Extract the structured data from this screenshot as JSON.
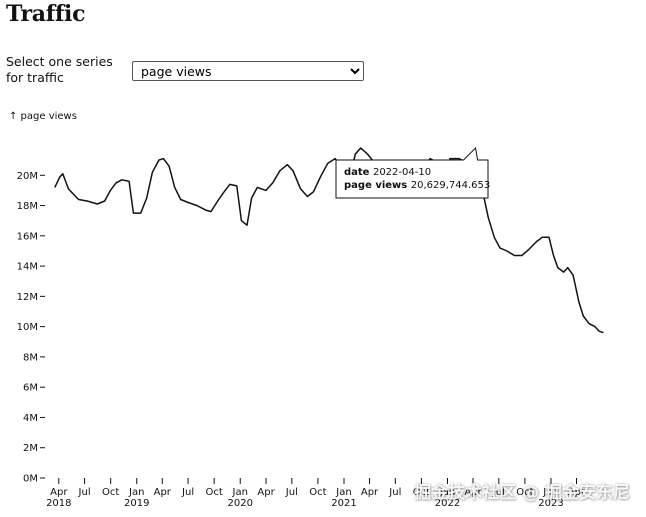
{
  "page": {
    "title": "Traffic"
  },
  "controls": {
    "series_label": "Select one series for traffic",
    "series_options": [
      "page views"
    ],
    "selected": "page views"
  },
  "tooltip": {
    "date_label": "date",
    "date_value": "2022-04-10",
    "value_label": "page views",
    "value_value": "20,629,744.653"
  },
  "watermark": "掘金技术社区 @ 掘金安东尼",
  "colors": {
    "line": "#111111",
    "text": "#111111",
    "axis": "#111111"
  },
  "chart_data": {
    "type": "line",
    "title": "",
    "xlabel": "",
    "ylabel": "↑ page views",
    "ylim": [
      0,
      22000000
    ],
    "xlim": [
      "2018-03-01",
      "2023-05-01"
    ],
    "y_ticks": [
      0,
      2000000,
      4000000,
      6000000,
      8000000,
      10000000,
      12000000,
      14000000,
      16000000,
      18000000,
      20000000
    ],
    "y_tick_labels": [
      "0M",
      "2M",
      "4M",
      "6M",
      "8M",
      "10M",
      "12M",
      "14M",
      "16M",
      "18M",
      "20M"
    ],
    "x_ticks": [
      {
        "date": "2018-04-01",
        "label": "Apr",
        "year": "2018"
      },
      {
        "date": "2018-07-01",
        "label": "Jul"
      },
      {
        "date": "2018-10-01",
        "label": "Oct"
      },
      {
        "date": "2019-01-01",
        "label": "Jan",
        "year": "2019"
      },
      {
        "date": "2019-04-01",
        "label": "Apr"
      },
      {
        "date": "2019-07-01",
        "label": "Jul"
      },
      {
        "date": "2019-10-01",
        "label": "Oct"
      },
      {
        "date": "2020-01-01",
        "label": "Jan",
        "year": "2020"
      },
      {
        "date": "2020-04-01",
        "label": "Apr"
      },
      {
        "date": "2020-07-01",
        "label": "Jul"
      },
      {
        "date": "2020-10-01",
        "label": "Oct"
      },
      {
        "date": "2021-01-01",
        "label": "Jan",
        "year": "2021"
      },
      {
        "date": "2021-04-01",
        "label": "Apr"
      },
      {
        "date": "2021-07-01",
        "label": "Jul"
      },
      {
        "date": "2021-10-01",
        "label": "Oct"
      },
      {
        "date": "2022-01-01",
        "label": "Jan",
        "year": "2022"
      },
      {
        "date": "2022-04-01",
        "label": "Apr"
      },
      {
        "date": "2022-07-01",
        "label": "Jul"
      },
      {
        "date": "2022-10-01",
        "label": "Oct"
      },
      {
        "date": "2023-01-01",
        "label": "Jan",
        "year": "2023"
      },
      {
        "date": "2023-04-01",
        "label": "Apr"
      }
    ],
    "grid": false,
    "legend": "none",
    "series": [
      {
        "name": "page views",
        "points": [
          [
            "2018-03-18",
            19200000
          ],
          [
            "2018-04-05",
            19900000
          ],
          [
            "2018-04-15",
            20100000
          ],
          [
            "2018-04-25",
            19600000
          ],
          [
            "2018-05-05",
            19100000
          ],
          [
            "2018-05-20",
            18800000
          ],
          [
            "2018-06-10",
            18400000
          ],
          [
            "2018-07-10",
            18300000
          ],
          [
            "2018-08-15",
            18100000
          ],
          [
            "2018-09-10",
            18300000
          ],
          [
            "2018-09-30",
            19000000
          ],
          [
            "2018-10-20",
            19500000
          ],
          [
            "2018-11-10",
            19700000
          ],
          [
            "2018-12-05",
            19600000
          ],
          [
            "2018-12-20",
            17500000
          ],
          [
            "2019-01-15",
            17500000
          ],
          [
            "2019-02-05",
            18500000
          ],
          [
            "2019-02-25",
            20200000
          ],
          [
            "2019-03-20",
            21000000
          ],
          [
            "2019-04-05",
            21100000
          ],
          [
            "2019-04-25",
            20600000
          ],
          [
            "2019-05-15",
            19200000
          ],
          [
            "2019-06-05",
            18400000
          ],
          [
            "2019-07-01",
            18200000
          ],
          [
            "2019-08-01",
            18000000
          ],
          [
            "2019-09-01",
            17700000
          ],
          [
            "2019-09-20",
            17600000
          ],
          [
            "2019-10-10",
            18200000
          ],
          [
            "2019-11-01",
            18800000
          ],
          [
            "2019-11-25",
            19400000
          ],
          [
            "2019-12-20",
            19300000
          ],
          [
            "2020-01-05",
            17000000
          ],
          [
            "2020-01-25",
            16700000
          ],
          [
            "2020-02-10",
            18500000
          ],
          [
            "2020-03-01",
            19200000
          ],
          [
            "2020-04-01",
            19000000
          ],
          [
            "2020-04-25",
            19500000
          ],
          [
            "2020-05-20",
            20300000
          ],
          [
            "2020-06-15",
            20700000
          ],
          [
            "2020-07-05",
            20300000
          ],
          [
            "2020-08-01",
            19100000
          ],
          [
            "2020-08-25",
            18600000
          ],
          [
            "2020-09-15",
            18900000
          ],
          [
            "2020-10-10",
            19900000
          ],
          [
            "2020-11-05",
            20800000
          ],
          [
            "2020-12-01",
            21100000
          ],
          [
            "2020-12-20",
            20600000
          ],
          [
            "2021-01-10",
            19300000
          ],
          [
            "2021-01-20",
            19700000
          ],
          [
            "2021-02-10",
            21400000
          ],
          [
            "2021-03-01",
            21800000
          ],
          [
            "2021-03-25",
            21400000
          ],
          [
            "2021-04-20",
            20800000
          ],
          [
            "2021-05-15",
            20400000
          ],
          [
            "2021-06-10",
            20100000
          ],
          [
            "2021-07-05",
            19500000
          ],
          [
            "2021-07-25",
            18600000
          ],
          [
            "2021-08-20",
            18600000
          ],
          [
            "2021-09-15",
            19600000
          ],
          [
            "2021-10-10",
            20600000
          ],
          [
            "2021-11-01",
            21100000
          ],
          [
            "2021-11-20",
            20900000
          ],
          [
            "2021-12-10",
            20000000
          ],
          [
            "2021-12-25",
            20000000
          ],
          [
            "2022-01-10",
            21100000
          ],
          [
            "2022-02-10",
            21100000
          ],
          [
            "2022-03-05",
            20900000
          ],
          [
            "2022-03-25",
            21000000
          ],
          [
            "2022-04-10",
            20629744.653
          ],
          [
            "2022-05-01",
            19300000
          ],
          [
            "2022-05-25",
            17200000
          ],
          [
            "2022-06-15",
            15900000
          ],
          [
            "2022-07-05",
            15200000
          ],
          [
            "2022-07-30",
            15000000
          ],
          [
            "2022-08-25",
            14700000
          ],
          [
            "2022-09-20",
            14700000
          ],
          [
            "2022-10-15",
            15100000
          ],
          [
            "2022-11-10",
            15600000
          ],
          [
            "2022-12-01",
            15900000
          ],
          [
            "2022-12-25",
            15900000
          ],
          [
            "2023-01-10",
            14700000
          ],
          [
            "2023-01-25",
            13900000
          ],
          [
            "2023-02-15",
            13600000
          ],
          [
            "2023-03-01",
            13900000
          ],
          [
            "2023-03-20",
            13400000
          ],
          [
            "2023-04-10",
            11600000
          ],
          [
            "2023-04-25",
            10700000
          ],
          [
            "2023-05-15",
            10200000
          ],
          [
            "2023-06-05",
            10000000
          ],
          [
            "2023-06-20",
            9700000
          ],
          [
            "2023-07-05",
            9600000
          ]
        ]
      }
    ]
  }
}
